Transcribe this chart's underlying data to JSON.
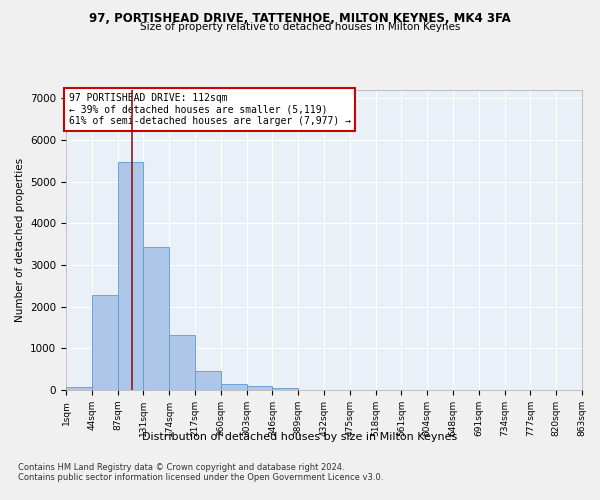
{
  "title1": "97, PORTISHEAD DRIVE, TATTENHOE, MILTON KEYNES, MK4 3FA",
  "title2": "Size of property relative to detached houses in Milton Keynes",
  "xlabel": "Distribution of detached houses by size in Milton Keynes",
  "ylabel": "Number of detached properties",
  "footnote1": "Contains HM Land Registry data © Crown copyright and database right 2024.",
  "footnote2": "Contains public sector information licensed under the Open Government Licence v3.0.",
  "bar_color": "#aec6e8",
  "bar_edge_color": "#5b9bd5",
  "bg_color": "#eaf0f8",
  "grid_color": "#ffffff",
  "vline_color": "#8b1a1a",
  "vline_x": 2.57,
  "annotation_text": "97 PORTISHEAD DRIVE: 112sqm\n← 39% of detached houses are smaller (5,119)\n61% of semi-detached houses are larger (7,977) →",
  "annotation_box_color": "#ffffff",
  "annotation_box_edge": "#cc0000",
  "bins": [
    "1sqm",
    "44sqm",
    "87sqm",
    "131sqm",
    "174sqm",
    "217sqm",
    "260sqm",
    "303sqm",
    "346sqm",
    "389sqm",
    "432sqm",
    "475sqm",
    "518sqm",
    "561sqm",
    "604sqm",
    "648sqm",
    "691sqm",
    "734sqm",
    "777sqm",
    "820sqm",
    "863sqm"
  ],
  "values": [
    75,
    2280,
    5480,
    3440,
    1310,
    460,
    155,
    90,
    60,
    0,
    0,
    0,
    0,
    0,
    0,
    0,
    0,
    0,
    0,
    0
  ],
  "ylim": [
    0,
    7200
  ],
  "yticks": [
    0,
    1000,
    2000,
    3000,
    4000,
    5000,
    6000,
    7000
  ],
  "fig_bg": "#f0f0f0"
}
